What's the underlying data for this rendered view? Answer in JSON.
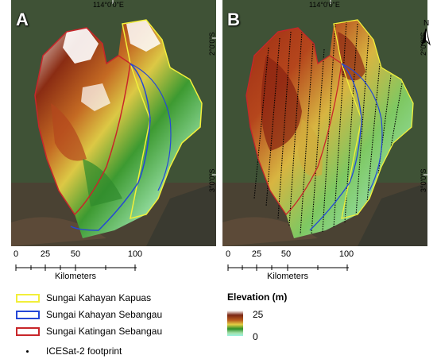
{
  "panels": {
    "a": {
      "label": "A"
    },
    "b": {
      "label": "B"
    }
  },
  "coordinates": {
    "longitude": "114°0'0\"E",
    "lat_north": "2°0'0\"S",
    "lat_south": "3°0'0\"S"
  },
  "north_arrow": {
    "label": "N"
  },
  "scale_bar": {
    "ticks": [
      "0",
      "25",
      "50",
      "100"
    ],
    "unit": "Kilometers"
  },
  "legend": {
    "boundaries": [
      {
        "label": "Sungai Kahayan Kapuas",
        "color": "#f2ef3a"
      },
      {
        "label": "Sungai Kahayan Sebangau",
        "color": "#2447d6"
      },
      {
        "label": "Sungai Katingan Sebangau",
        "color": "#c8262a"
      }
    ],
    "footprint_label": "ICESat-2 footprint"
  },
  "elevation_legend": {
    "title": "Elevation (m)",
    "max": "25",
    "min": "0"
  },
  "colors": {
    "kapuas": "#f2ef3a",
    "sebangau": "#2447d6",
    "katingan": "#c8262a",
    "footprint": "#000000"
  }
}
